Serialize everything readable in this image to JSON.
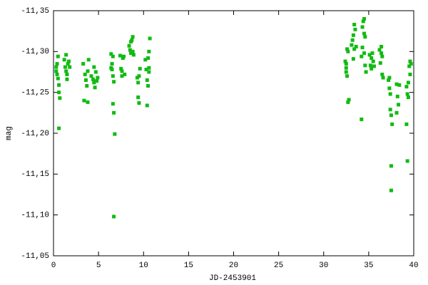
{
  "chart_data": {
    "type": "scatter",
    "xlabel": "JD-2453901",
    "ylabel": "mag",
    "xlim": [
      0,
      40
    ],
    "ylim": [
      -11.05,
      -11.35
    ],
    "xticks": [
      0,
      5,
      10,
      15,
      20,
      25,
      30,
      35,
      40
    ],
    "yticks": [
      {
        "value": -11.05,
        "label": "-11,05"
      },
      {
        "value": -11.1,
        "label": "-11,10"
      },
      {
        "value": -11.15,
        "label": "-11,15"
      },
      {
        "value": -11.2,
        "label": "-11,20"
      },
      {
        "value": -11.25,
        "label": "-11,25"
      },
      {
        "value": -11.3,
        "label": "-11,30"
      },
      {
        "value": -11.35,
        "label": "-11,35"
      }
    ],
    "color": "#11bb11",
    "grid": false,
    "x": [
      0.3,
      0.3,
      0.4,
      0.4,
      0.5,
      0.6,
      0.6,
      0.7,
      0.6,
      0.5,
      1.2,
      1.3,
      1.4,
      1.5,
      1.5,
      1.6,
      1.7,
      1.8,
      1.4,
      3.3,
      3.5,
      3.6,
      3.7,
      3.4,
      3.8,
      3.9,
      3.8,
      4.2,
      4.4,
      4.5,
      4.6,
      4.7,
      4.5,
      4.8,
      4.9,
      6.4,
      6.4,
      6.5,
      6.6,
      6.6,
      6.7,
      6.6,
      6.7,
      6.8,
      6.7,
      6.5,
      7.4,
      7.5,
      7.6,
      7.7,
      7.8,
      7.9,
      7.6,
      8.4,
      8.5,
      8.6,
      8.7,
      8.8,
      8.9,
      8.6,
      8.8,
      9.3,
      9.4,
      9.5,
      9.4,
      9.5,
      9.6,
      10.2,
      10.3,
      10.4,
      10.5,
      10.6,
      10.4,
      10.6,
      10.7,
      10.5,
      10.6,
      32.4,
      32.5,
      32.5,
      32.6,
      32.7,
      32.6,
      32.8,
      32.7,
      32.5,
      33.1,
      33.2,
      33.3,
      33.4,
      33.5,
      33.3,
      33.4,
      33.6,
      34.2,
      34.3,
      34.4,
      34.5,
      34.5,
      34.6,
      34.3,
      34.5,
      34.6,
      34.7,
      34.2,
      35.1,
      35.2,
      35.3,
      35.4,
      35.5,
      35.6,
      35.3,
      36.2,
      36.4,
      36.5,
      36.3,
      36.5,
      36.6,
      36.4,
      37.2,
      37.3,
      37.4,
      37.4,
      37.5,
      37.6,
      37.5,
      37.5,
      37.3,
      38.1,
      38.2,
      38.3,
      38.1,
      38.4,
      39.2,
      39.3,
      39.4,
      39.2,
      39.3,
      39.5,
      39.6,
      39.7,
      39.6,
      39.4
    ],
    "values": [
      -11.276,
      -11.281,
      -11.285,
      -11.272,
      -11.267,
      -11.259,
      -11.25,
      -11.243,
      -11.206,
      -11.294,
      -11.29,
      -11.281,
      -11.276,
      -11.272,
      -11.266,
      -11.285,
      -11.288,
      -11.281,
      -11.296,
      -11.285,
      -11.272,
      -11.265,
      -11.258,
      -11.24,
      -11.238,
      -11.29,
      -11.276,
      -11.27,
      -11.266,
      -11.262,
      -11.256,
      -11.275,
      -11.281,
      -11.264,
      -11.268,
      -11.297,
      -11.28,
      -11.278,
      -11.294,
      -11.27,
      -11.263,
      -11.236,
      -11.225,
      -11.199,
      -11.098,
      -11.285,
      -11.295,
      -11.279,
      -11.27,
      -11.292,
      -11.294,
      -11.272,
      -11.276,
      -11.307,
      -11.302,
      -11.298,
      -11.314,
      -11.318,
      -11.296,
      -11.312,
      -11.3,
      -11.268,
      -11.262,
      -11.27,
      -11.244,
      -11.237,
      -11.279,
      -11.29,
      -11.278,
      -11.265,
      -11.258,
      -11.275,
      -11.234,
      -11.3,
      -11.316,
      -11.292,
      -11.28,
      -11.288,
      -11.28,
      -11.275,
      -11.27,
      -11.3,
      -11.303,
      -11.241,
      -11.238,
      -11.285,
      -11.308,
      -11.314,
      -11.32,
      -11.333,
      -11.327,
      -11.291,
      -11.303,
      -11.306,
      -11.217,
      -11.33,
      -11.337,
      -11.34,
      -11.322,
      -11.318,
      -11.305,
      -11.298,
      -11.283,
      -11.275,
      -11.294,
      -11.296,
      -11.283,
      -11.279,
      -11.298,
      -11.288,
      -11.282,
      -11.292,
      -11.302,
      -11.306,
      -11.294,
      -11.286,
      -11.272,
      -11.268,
      -11.298,
      -11.265,
      -11.255,
      -11.248,
      -11.229,
      -11.222,
      -11.211,
      -11.16,
      -11.13,
      -11.268,
      -11.26,
      -11.245,
      -11.235,
      -11.225,
      -11.259,
      -11.257,
      -11.248,
      -11.262,
      -11.211,
      -11.166,
      -11.282,
      -11.288,
      -11.285,
      -11.272,
      -11.244
    ]
  }
}
